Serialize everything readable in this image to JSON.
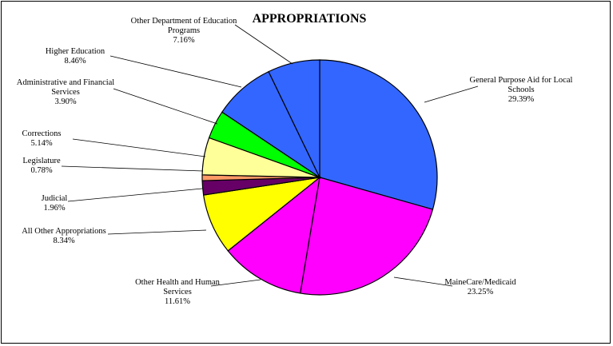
{
  "chart_data": {
    "type": "pie",
    "title": "APPROPRIATIONS",
    "slices": [
      {
        "label": [
          "General Purpose Aid for Local",
          "Schools"
        ],
        "pct_text": "29.39%",
        "value": 29.39,
        "color": "#3366FF"
      },
      {
        "label": [
          "MaineCare/Medicaid"
        ],
        "pct_text": "23.25%",
        "value": 23.25,
        "color": "#FF00FF"
      },
      {
        "label": [
          "Other Health and Human",
          "Services"
        ],
        "pct_text": "11.61%",
        "value": 11.61,
        "color": "#FF00FF"
      },
      {
        "label": [
          "All Other Appropriations"
        ],
        "pct_text": "8.34%",
        "value": 8.34,
        "color": "#FFFF00"
      },
      {
        "label": [
          "Judicial"
        ],
        "pct_text": "1.96%",
        "value": 1.96,
        "color": "#660066"
      },
      {
        "label": [
          "Legislature"
        ],
        "pct_text": "0.78%",
        "value": 0.78,
        "color": "#FF9966"
      },
      {
        "label": [
          "Corrections"
        ],
        "pct_text": "5.14%",
        "value": 5.14,
        "color": "#FFFF99"
      },
      {
        "label": [
          "Administrative and Financial",
          "Services"
        ],
        "pct_text": "3.90%",
        "value": 3.9,
        "color": "#00FF00"
      },
      {
        "label": [
          "Higher Education"
        ],
        "pct_text": "8.46%",
        "value": 8.46,
        "color": "#3366FF"
      },
      {
        "label": [
          "Other Department of Education",
          "Programs"
        ],
        "pct_text": "7.16%",
        "value": 7.16,
        "color": "#3366FF"
      }
    ]
  }
}
